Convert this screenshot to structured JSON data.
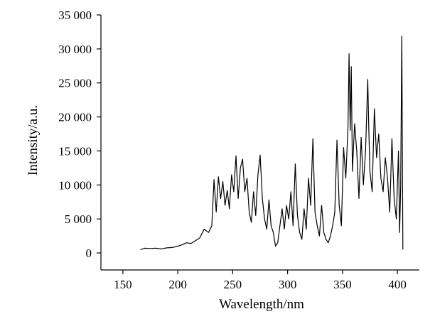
{
  "chart_data": {
    "type": "line",
    "title": "",
    "xlabel": "Wavelength/nm",
    "ylabel": "Intensity/a.u.",
    "xlim": [
      130,
      420
    ],
    "ylim": [
      -2500,
      35000
    ],
    "x_ticks": [
      150,
      200,
      250,
      300,
      350,
      400
    ],
    "x_tick_labels": [
      "150",
      "200",
      "250",
      "300",
      "350",
      "400"
    ],
    "y_ticks": [
      0,
      5000,
      10000,
      15000,
      20000,
      25000,
      30000,
      35000
    ],
    "y_tick_labels": [
      "0",
      "5 000",
      "10 000",
      "15 000",
      "20 000",
      "25 000",
      "30 000",
      "35 000"
    ],
    "grid": false,
    "legend": "none",
    "line_color": "#000000",
    "series": [
      {
        "x": [
          166,
          170,
          175,
          180,
          185,
          190,
          195,
          200,
          204,
          208,
          212,
          216,
          220,
          224,
          228,
          231,
          233,
          235,
          237,
          239,
          241,
          243,
          245,
          247,
          249,
          251,
          253,
          255,
          257,
          259,
          261,
          263,
          265,
          267,
          269,
          271,
          273,
          275,
          277,
          279,
          281,
          283,
          285,
          287,
          289,
          291,
          293,
          295,
          297,
          299,
          301,
          303,
          305,
          307,
          309,
          311,
          313,
          315,
          317,
          319,
          321,
          323,
          325,
          327,
          329,
          331,
          333,
          335,
          337,
          339,
          341,
          343,
          345,
          347,
          349,
          351,
          353,
          355,
          356,
          357,
          358,
          359,
          361,
          363,
          365,
          367,
          369,
          371,
          373,
          374,
          375,
          377,
          379,
          381,
          383,
          385,
          387,
          389,
          391,
          393,
          395,
          397,
          399,
          401,
          402,
          403,
          404,
          405
        ],
        "values": [
          500,
          700,
          650,
          700,
          600,
          750,
          800,
          1000,
          1200,
          1500,
          1400,
          1800,
          2200,
          3500,
          3000,
          4000,
          10800,
          6000,
          11200,
          8000,
          10500,
          7000,
          9200,
          6500,
          11500,
          9000,
          14300,
          8000,
          12500,
          13800,
          9000,
          11000,
          6000,
          4500,
          9000,
          5500,
          11500,
          14400,
          8000,
          5000,
          3500,
          7800,
          4000,
          3000,
          1000,
          1500,
          4000,
          6500,
          3500,
          7000,
          5000,
          9000,
          4000,
          13100,
          5500,
          3000,
          2000,
          6500,
          3500,
          11000,
          7000,
          16800,
          6000,
          4000,
          2500,
          7000,
          3000,
          2000,
          1500,
          2500,
          4000,
          6000,
          16600,
          7000,
          4000,
          15500,
          11000,
          18500,
          29300,
          18000,
          27400,
          12000,
          19000,
          15000,
          8000,
          17000,
          10000,
          15000,
          25500,
          18000,
          12000,
          9000,
          21200,
          14000,
          17500,
          11000,
          9000,
          14000,
          11000,
          6000,
          16800,
          8000,
          5000,
          15000,
          3000,
          9700,
          31900,
          500
        ]
      }
    ]
  }
}
